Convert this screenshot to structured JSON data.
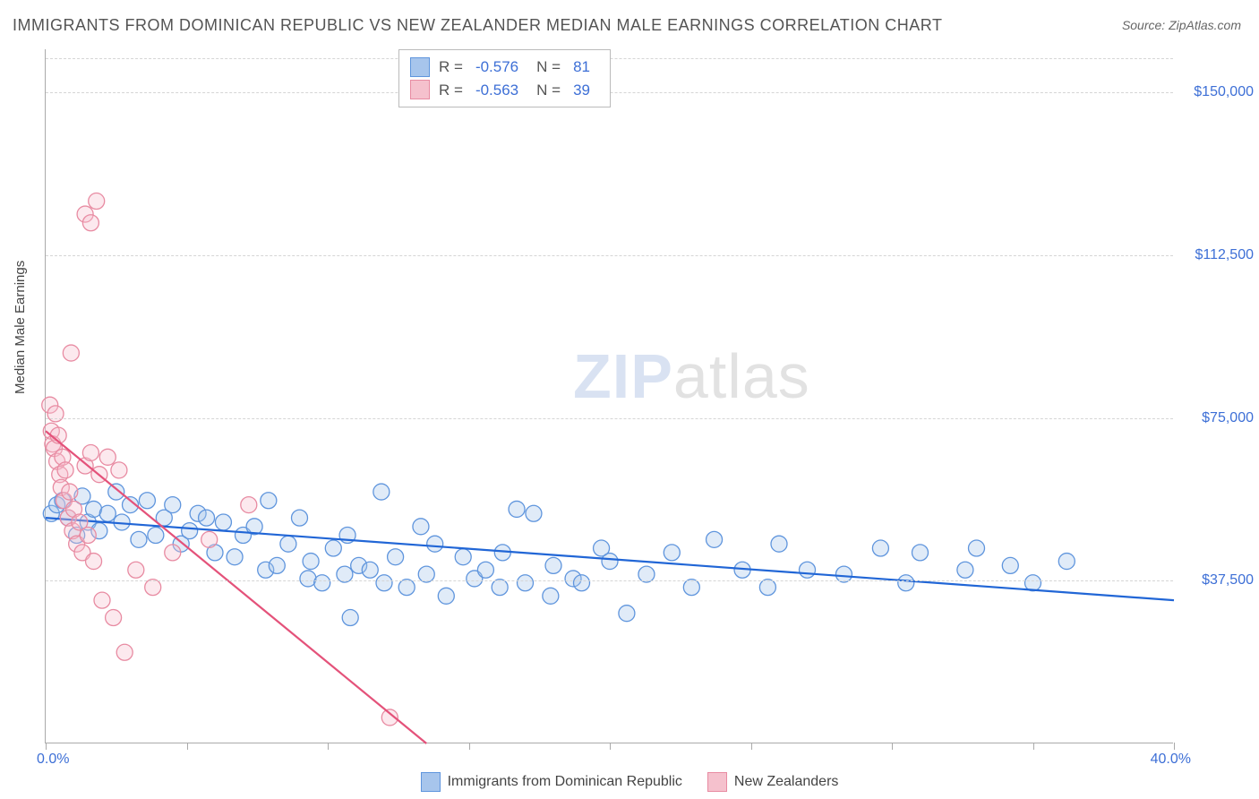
{
  "title": "IMMIGRANTS FROM DOMINICAN REPUBLIC VS NEW ZEALANDER MEDIAN MALE EARNINGS CORRELATION CHART",
  "source": "Source: ZipAtlas.com",
  "watermark": {
    "part1": "ZIP",
    "part2": "atlas"
  },
  "ylabel": "Median Male Earnings",
  "chart": {
    "type": "scatter",
    "background_color": "#ffffff",
    "grid_color": "#d5d5d5",
    "axis_color": "#aaaaaa",
    "text_color": "#545454",
    "value_color": "#3d6fd6",
    "xlim": [
      0,
      40
    ],
    "ylim": [
      0,
      160000
    ],
    "xticks_pct": [
      0,
      12.5,
      25,
      37.5,
      50,
      62.5,
      75,
      87.5,
      100
    ],
    "yticks": [
      {
        "value": 37500,
        "label": "$37,500"
      },
      {
        "value": 75000,
        "label": "$75,000"
      },
      {
        "value": 112500,
        "label": "$112,500"
      },
      {
        "value": 150000,
        "label": "$150,000"
      }
    ],
    "xaxis_min_label": "0.0%",
    "xaxis_max_label": "40.0%",
    "marker_radius": 9,
    "marker_fill_opacity": 0.35,
    "marker_stroke_width": 1.3,
    "line_width": 2.2,
    "series": [
      {
        "name": "Immigrants from Dominican Republic",
        "color_fill": "#a7c5ec",
        "color_stroke": "#5f95dd",
        "line_color": "#2166d6",
        "r_label": "R =",
        "r_value": "-0.576",
        "n_label": "N =",
        "n_value": "81",
        "regression": {
          "x1": 0,
          "y1": 52000,
          "x2": 40,
          "y2": 33000
        },
        "points": [
          [
            0.2,
            53000
          ],
          [
            0.4,
            55000
          ],
          [
            0.6,
            56000
          ],
          [
            0.8,
            52000
          ],
          [
            1.1,
            48000
          ],
          [
            1.3,
            57000
          ],
          [
            1.5,
            51000
          ],
          [
            1.7,
            54000
          ],
          [
            1.9,
            49000
          ],
          [
            2.2,
            53000
          ],
          [
            2.5,
            58000
          ],
          [
            2.7,
            51000
          ],
          [
            3.0,
            55000
          ],
          [
            3.3,
            47000
          ],
          [
            3.6,
            56000
          ],
          [
            3.9,
            48000
          ],
          [
            4.2,
            52000
          ],
          [
            4.5,
            55000
          ],
          [
            4.8,
            46000
          ],
          [
            5.1,
            49000
          ],
          [
            5.4,
            53000
          ],
          [
            5.7,
            52000
          ],
          [
            6.0,
            44000
          ],
          [
            6.3,
            51000
          ],
          [
            6.7,
            43000
          ],
          [
            7.0,
            48000
          ],
          [
            7.4,
            50000
          ],
          [
            7.8,
            40000
          ],
          [
            7.9,
            56000
          ],
          [
            8.2,
            41000
          ],
          [
            8.6,
            46000
          ],
          [
            9.0,
            52000
          ],
          [
            9.3,
            38000
          ],
          [
            9.4,
            42000
          ],
          [
            9.8,
            37000
          ],
          [
            10.2,
            45000
          ],
          [
            10.6,
            39000
          ],
          [
            10.7,
            48000
          ],
          [
            10.8,
            29000
          ],
          [
            11.1,
            41000
          ],
          [
            11.5,
            40000
          ],
          [
            11.9,
            58000
          ],
          [
            12.0,
            37000
          ],
          [
            12.4,
            43000
          ],
          [
            12.8,
            36000
          ],
          [
            13.3,
            50000
          ],
          [
            13.5,
            39000
          ],
          [
            13.8,
            46000
          ],
          [
            14.2,
            34000
          ],
          [
            14.8,
            43000
          ],
          [
            15.2,
            38000
          ],
          [
            15.6,
            40000
          ],
          [
            16.1,
            36000
          ],
          [
            16.2,
            44000
          ],
          [
            16.7,
            54000
          ],
          [
            17.0,
            37000
          ],
          [
            17.3,
            53000
          ],
          [
            17.9,
            34000
          ],
          [
            18.0,
            41000
          ],
          [
            18.7,
            38000
          ],
          [
            19.0,
            37000
          ],
          [
            19.7,
            45000
          ],
          [
            20.0,
            42000
          ],
          [
            20.6,
            30000
          ],
          [
            21.3,
            39000
          ],
          [
            22.2,
            44000
          ],
          [
            22.9,
            36000
          ],
          [
            23.7,
            47000
          ],
          [
            24.7,
            40000
          ],
          [
            25.6,
            36000
          ],
          [
            26.0,
            46000
          ],
          [
            27.0,
            40000
          ],
          [
            28.3,
            39000
          ],
          [
            29.6,
            45000
          ],
          [
            30.5,
            37000
          ],
          [
            31.0,
            44000
          ],
          [
            32.6,
            40000
          ],
          [
            33.0,
            45000
          ],
          [
            34.2,
            41000
          ],
          [
            35.0,
            37000
          ],
          [
            36.2,
            42000
          ]
        ]
      },
      {
        "name": "New Zealanders",
        "color_fill": "#f5c1cd",
        "color_stroke": "#e88ba2",
        "line_color": "#e4527a",
        "r_label": "R =",
        "r_value": "-0.563",
        "n_label": "N =",
        "n_value": "39",
        "regression": {
          "x1": 0,
          "y1": 72000,
          "x2": 13.5,
          "y2": 0
        },
        "points": [
          [
            0.15,
            78000
          ],
          [
            0.2,
            72000
          ],
          [
            0.25,
            69000
          ],
          [
            0.3,
            68000
          ],
          [
            0.35,
            76000
          ],
          [
            0.4,
            65000
          ],
          [
            0.45,
            71000
          ],
          [
            0.5,
            62000
          ],
          [
            0.55,
            59000
          ],
          [
            0.6,
            66000
          ],
          [
            0.65,
            56000
          ],
          [
            0.7,
            63000
          ],
          [
            0.8,
            52000
          ],
          [
            0.85,
            58000
          ],
          [
            0.9,
            90000
          ],
          [
            0.95,
            49000
          ],
          [
            1.0,
            54000
          ],
          [
            1.1,
            46000
          ],
          [
            1.2,
            51000
          ],
          [
            1.3,
            44000
          ],
          [
            1.4,
            64000
          ],
          [
            1.4,
            122000
          ],
          [
            1.5,
            48000
          ],
          [
            1.6,
            67000
          ],
          [
            1.6,
            120000
          ],
          [
            1.7,
            42000
          ],
          [
            1.8,
            125000
          ],
          [
            1.9,
            62000
          ],
          [
            2.0,
            33000
          ],
          [
            2.2,
            66000
          ],
          [
            2.4,
            29000
          ],
          [
            2.6,
            63000
          ],
          [
            2.8,
            21000
          ],
          [
            3.2,
            40000
          ],
          [
            3.8,
            36000
          ],
          [
            4.5,
            44000
          ],
          [
            5.8,
            47000
          ],
          [
            7.2,
            55000
          ],
          [
            12.2,
            6000
          ]
        ]
      }
    ]
  },
  "legend_bottom": [
    {
      "label": "Immigrants from Dominican Republic",
      "fill": "#a7c5ec",
      "stroke": "#5f95dd"
    },
    {
      "label": "New Zealanders",
      "fill": "#f5c1cd",
      "stroke": "#e88ba2"
    }
  ]
}
